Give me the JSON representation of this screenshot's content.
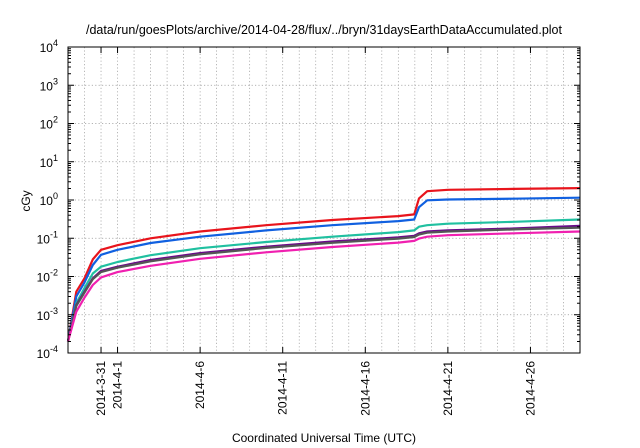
{
  "chart_data": {
    "type": "line",
    "title": "/data/run/goesPlots/archive/2014-04-28/flux/../bryn/31daysEarthDataAccumulated.plot",
    "xlabel": "Coordinated Universal Time (UTC)",
    "ylabel": "cGy",
    "yscale": "log",
    "ylim": [
      0.0001,
      10000
    ],
    "xlim": [
      "2014-03-29",
      "2014-04-29"
    ],
    "grid": true,
    "legend": "none",
    "y_ticks": [
      {
        "base": "10",
        "exp": "4",
        "value": 10000
      },
      {
        "base": "10",
        "exp": "3",
        "value": 1000
      },
      {
        "base": "10",
        "exp": "2",
        "value": 100
      },
      {
        "base": "10",
        "exp": "1",
        "value": 10
      },
      {
        "base": "10",
        "exp": "0",
        "value": 1
      },
      {
        "base": "10",
        "exp": "-1",
        "value": 0.1
      },
      {
        "base": "10",
        "exp": "-2",
        "value": 0.01
      },
      {
        "base": "10",
        "exp": "-3",
        "value": 0.001
      },
      {
        "base": "10",
        "exp": "-4",
        "value": 0.0001
      }
    ],
    "x_ticks": [
      {
        "label": "2014-3-31",
        "date": "2014-03-31"
      },
      {
        "label": "2014-4-1",
        "date": "2014-04-01"
      },
      {
        "label": "2014-4-6",
        "date": "2014-04-06"
      },
      {
        "label": "2014-4-11",
        "date": "2014-04-11"
      },
      {
        "label": "2014-4-16",
        "date": "2014-04-16"
      },
      {
        "label": "2014-4-21",
        "date": "2014-04-21"
      },
      {
        "label": "2014-4-26",
        "date": "2014-04-26"
      }
    ],
    "series": [
      {
        "color": "#e8141c",
        "x": [
          "2014-03-29",
          "2014-03-29 12:00",
          "2014-03-30",
          "2014-03-30 12:00",
          "2014-03-31",
          "2014-04-01",
          "2014-04-03",
          "2014-04-06",
          "2014-04-10",
          "2014-04-14",
          "2014-04-18",
          "2014-04-18 23:00",
          "2014-04-19 06:00",
          "2014-04-19 18:00",
          "2014-04-21",
          "2014-04-25",
          "2014-04-29"
        ],
        "y": [
          0.0002,
          0.004,
          0.009,
          0.028,
          0.05,
          0.066,
          0.1,
          0.15,
          0.22,
          0.3,
          0.38,
          0.42,
          1.1,
          1.7,
          1.85,
          1.95,
          2.05
        ]
      },
      {
        "color": "#1060e0",
        "x": [
          "2014-03-29",
          "2014-03-29 12:00",
          "2014-03-30",
          "2014-03-30 12:00",
          "2014-03-31",
          "2014-04-01",
          "2014-04-03",
          "2014-04-06",
          "2014-04-10",
          "2014-04-14",
          "2014-04-18",
          "2014-04-18 23:00",
          "2014-04-19 06:00",
          "2014-04-19 18:00",
          "2014-04-21",
          "2014-04-25",
          "2014-04-29"
        ],
        "y": [
          0.0002,
          0.003,
          0.007,
          0.02,
          0.037,
          0.05,
          0.075,
          0.11,
          0.16,
          0.22,
          0.28,
          0.31,
          0.65,
          0.98,
          1.03,
          1.08,
          1.15
        ]
      },
      {
        "color": "#20c0a0",
        "x": [
          "2014-03-29",
          "2014-03-29 12:00",
          "2014-03-30",
          "2014-03-30 12:00",
          "2014-03-31",
          "2014-04-01",
          "2014-04-03",
          "2014-04-06",
          "2014-04-10",
          "2014-04-14",
          "2014-04-18",
          "2014-04-18 23:00",
          "2014-04-19 06:00",
          "2014-04-19 18:00",
          "2014-04-21",
          "2014-04-25",
          "2014-04-29"
        ],
        "y": [
          0.0002,
          0.002,
          0.005,
          0.012,
          0.018,
          0.024,
          0.036,
          0.055,
          0.08,
          0.11,
          0.145,
          0.16,
          0.2,
          0.22,
          0.24,
          0.27,
          0.31
        ]
      },
      {
        "color": "#6a0a8a",
        "x": [
          "2014-03-29",
          "2014-03-29 12:00",
          "2014-03-30",
          "2014-03-30 12:00",
          "2014-03-31",
          "2014-04-01",
          "2014-04-03",
          "2014-04-06",
          "2014-04-10",
          "2014-04-14",
          "2014-04-18",
          "2014-04-18 23:00",
          "2014-04-19 06:00",
          "2014-04-19 18:00",
          "2014-04-21",
          "2014-04-25",
          "2014-04-29"
        ],
        "y": [
          0.0002,
          0.0018,
          0.004,
          0.009,
          0.014,
          0.018,
          0.027,
          0.041,
          0.06,
          0.082,
          0.105,
          0.115,
          0.135,
          0.15,
          0.16,
          0.18,
          0.21
        ]
      },
      {
        "color": "#555555",
        "x": [
          "2014-03-29",
          "2014-03-29 12:00",
          "2014-03-30",
          "2014-03-30 12:00",
          "2014-03-31",
          "2014-04-01",
          "2014-04-03",
          "2014-04-06",
          "2014-04-10",
          "2014-04-14",
          "2014-04-18",
          "2014-04-18 23:00",
          "2014-04-19 06:00",
          "2014-04-19 18:00",
          "2014-04-21",
          "2014-04-25",
          "2014-04-29"
        ],
        "y": [
          0.0002,
          0.0017,
          0.0038,
          0.0085,
          0.013,
          0.017,
          0.025,
          0.038,
          0.056,
          0.076,
          0.098,
          0.108,
          0.125,
          0.14,
          0.15,
          0.17,
          0.19
        ]
      },
      {
        "color": "#f020b0",
        "x": [
          "2014-03-29",
          "2014-03-29 12:00",
          "2014-03-30",
          "2014-03-30 12:00",
          "2014-03-31",
          "2014-04-01",
          "2014-04-03",
          "2014-04-06",
          "2014-04-10",
          "2014-04-14",
          "2014-04-18",
          "2014-04-18 23:00",
          "2014-04-19 06:00",
          "2014-04-19 18:00",
          "2014-04-21",
          "2014-04-25",
          "2014-04-29"
        ],
        "y": [
          0.0002,
          0.0012,
          0.0028,
          0.006,
          0.0095,
          0.013,
          0.019,
          0.029,
          0.043,
          0.059,
          0.077,
          0.085,
          0.098,
          0.11,
          0.12,
          0.135,
          0.15
        ]
      }
    ]
  }
}
